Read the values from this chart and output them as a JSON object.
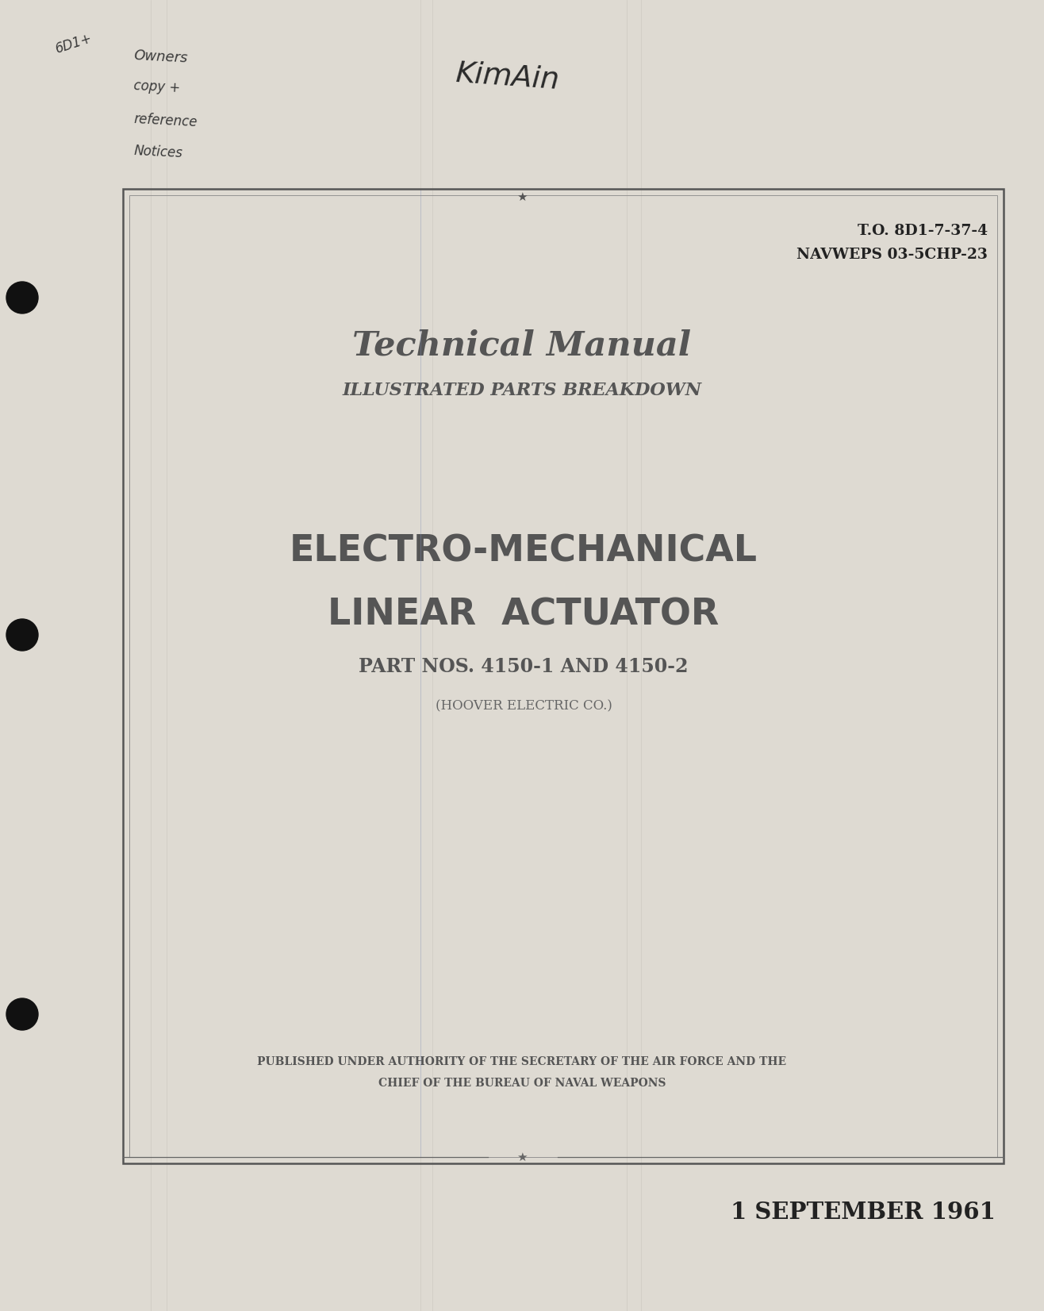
{
  "page_bg": "#dedad2",
  "border_color": "#555555",
  "dark_text": "#222222",
  "to_line1": "T.O. 8D1-7-37-4",
  "to_line2": "NAVWEPS 03-5CHP-23",
  "title_main": "Technical Manual",
  "title_sub": "ILLUSTRATED PARTS BREAKDOWN",
  "subject_line1": "ELECTRO-MECHANICAL",
  "subject_line2": "LINEAR  ACTUATOR",
  "part_nos": "PART NOS. 4150-1 AND 4150-2",
  "manufacturer": "(HOOVER ELECTRIC CO.)",
  "authority_line1": "PUBLISHED UNDER AUTHORITY OF THE SECRETARY OF THE AIR FORCE AND THE",
  "authority_line2": "CHIEF OF THE BUREAU OF NAVAL WEAPONS",
  "date": "1 SEPTEMBER 1961",
  "handwriting_top": "KimAin",
  "handwriting_left1": "6D1+",
  "handwriting_left2": "Owners",
  "handwriting_left3": "copy +",
  "handwriting_left4": "reference",
  "handwriting_left5": "Notices"
}
